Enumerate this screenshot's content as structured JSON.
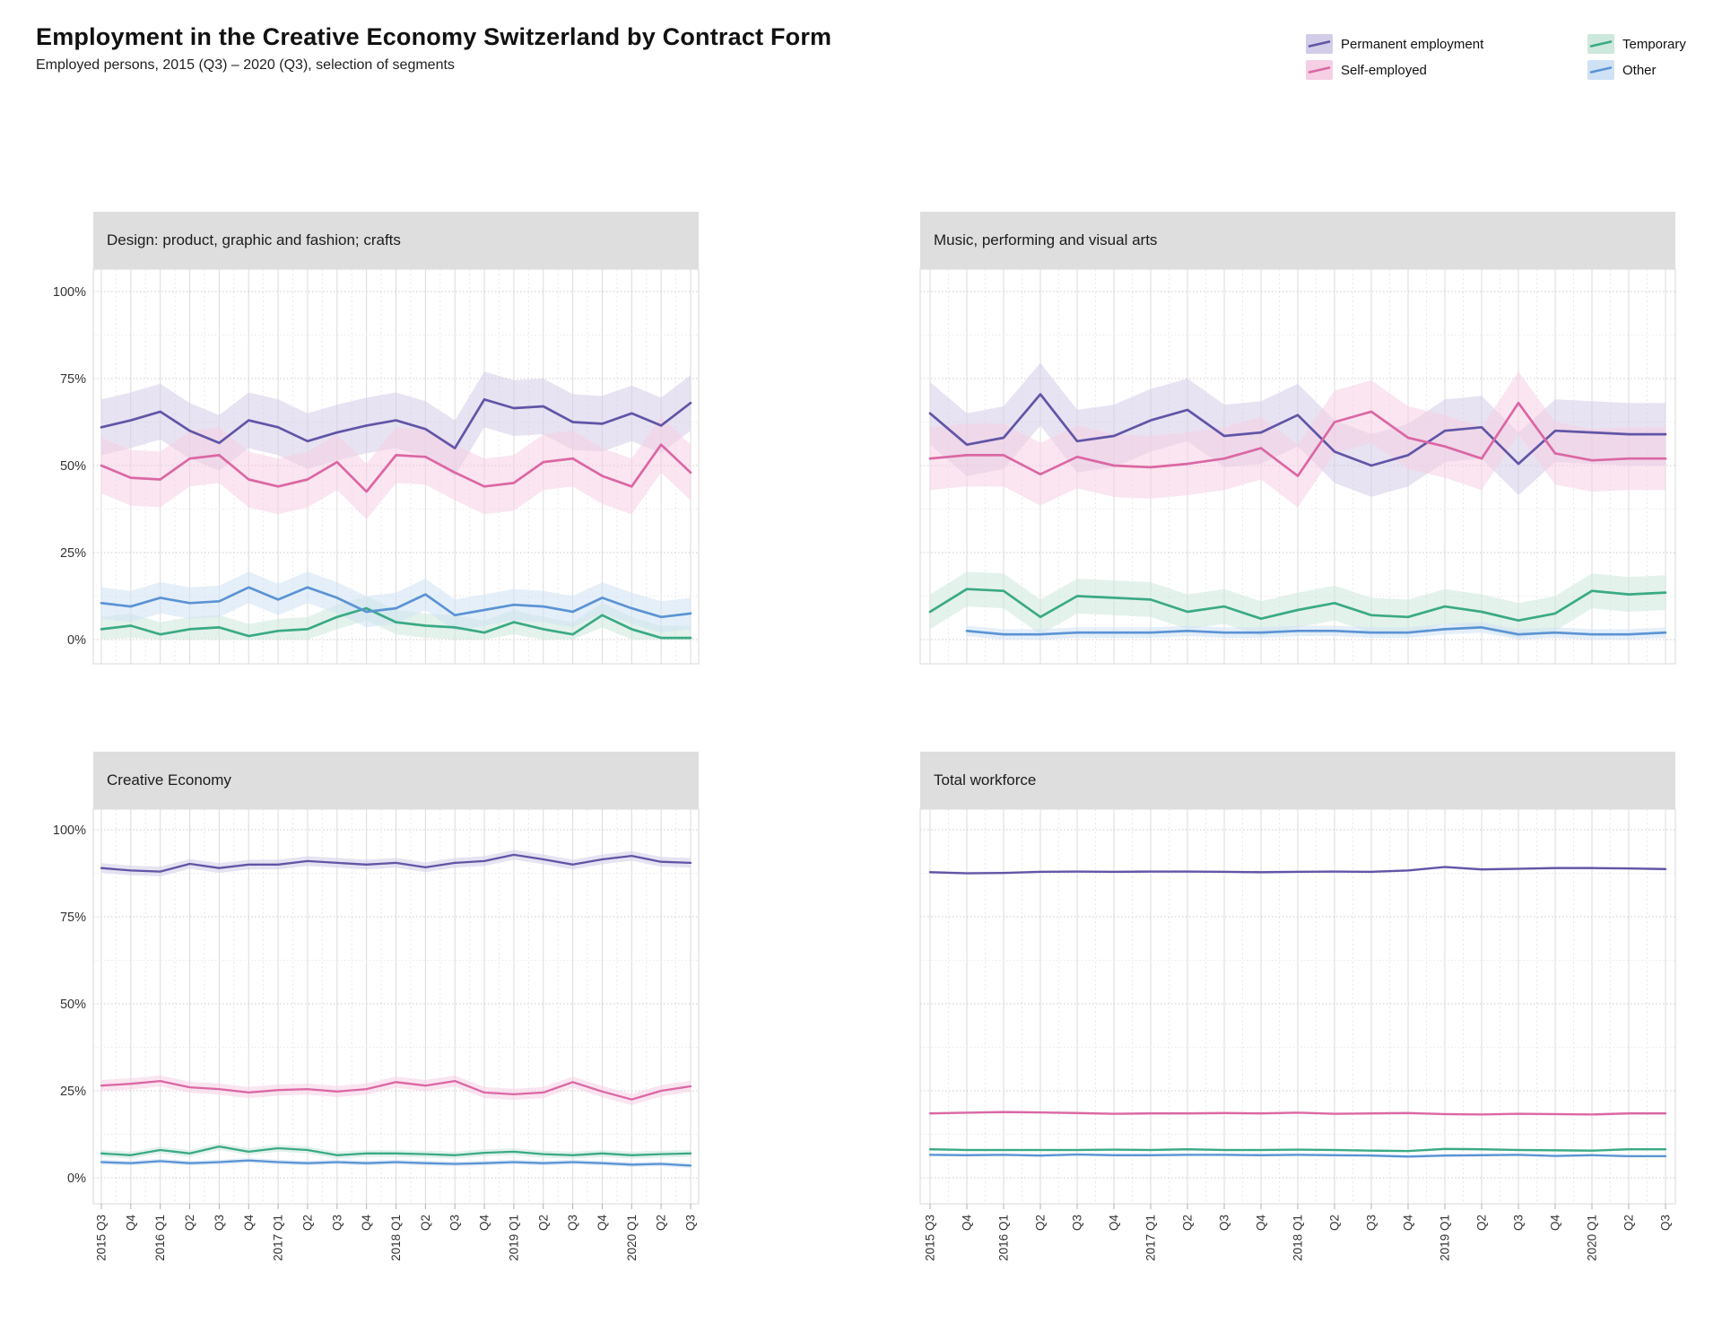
{
  "header": {
    "title": "Employment in the Creative Economy Switzerland by Contract Form",
    "subtitle": "Employed persons, 2015 (Q3) – 2020 (Q3), selection of segments"
  },
  "legend": [
    {
      "label": "Permanent employment",
      "color": "#6055A6",
      "fill": "#D3CCE8",
      "col": 0,
      "row": 0
    },
    {
      "label": "Self-employed",
      "color": "#DB67A4",
      "fill": "#F5CFE3",
      "col": 0,
      "row": 1
    },
    {
      "label": "Temporary",
      "color": "#3AAA85",
      "fill": "#CDE8DC",
      "col": 1,
      "row": 0
    },
    {
      "label": "Other",
      "color": "#5B93D4",
      "fill": "#CFE1F4",
      "col": 1,
      "row": 1
    }
  ],
  "axes": {
    "y_ticks": [
      "100%",
      "75%",
      "50%",
      "25%",
      "0%"
    ],
    "y_values": [
      100,
      75,
      50,
      25,
      0
    ]
  },
  "chart_data": {
    "type": "line",
    "title": "Employment in the Creative Economy Switzerland by Contract Form",
    "subtitle": "Employed persons, 2015 (Q3) – 2020 (Q3), selection of segments",
    "ylim": [
      0,
      100
    ],
    "grid": true,
    "legend_position": "top-right",
    "categories": [
      "2015 Q3",
      "Q4",
      "2016 Q1",
      "Q2",
      "Q3",
      "Q4",
      "2017 Q1",
      "Q2",
      "Q3",
      "Q4",
      "2018 Q1",
      "Q2",
      "Q3",
      "Q4",
      "2019 Q1",
      "Q2",
      "Q3",
      "Q4",
      "2020 Q1",
      "Q2",
      "Q3"
    ],
    "panels": [
      {
        "id": "design",
        "title": "Design: product, graphic and fashion; crafts",
        "series": [
          {
            "name": "Permanent employment",
            "color": "#6055A6",
            "fill": "#D3CCE8",
            "band": 8,
            "values": [
              61,
              63,
              65.5,
              60,
              56.5,
              63,
              61,
              57,
              59.5,
              61.5,
              63,
              60.5,
              55,
              69,
              66.5,
              67,
              62.5,
              62,
              65,
              61.5,
              68
            ]
          },
          {
            "name": "Self-employed",
            "color": "#DB67A4",
            "fill": "#F5CFE3",
            "band": 8,
            "values": [
              50,
              46.5,
              46,
              52,
              53,
              46,
              44,
              46,
              51,
              42.5,
              53,
              52.5,
              48,
              44,
              45,
              51,
              52,
              47,
              44,
              56,
              48
            ]
          },
          {
            "name": "Temporary",
            "color": "#3AAA85",
            "fill": "#CDE8DC",
            "band": 3.5,
            "values": [
              3,
              4,
              1.5,
              3,
              3.5,
              1,
              2.5,
              3,
              6.5,
              9,
              5,
              4,
              3.5,
              2,
              5,
              3,
              1.5,
              7,
              3,
              0.5,
              0.5
            ]
          },
          {
            "name": "Other",
            "color": "#5B93D4",
            "fill": "#CFE1F4",
            "band": 4.5,
            "values": [
              10.5,
              9.5,
              12,
              10.5,
              11,
              15,
              11.5,
              15,
              12,
              8,
              9,
              13,
              7,
              8.5,
              10,
              9.5,
              8,
              12,
              9,
              6.5,
              7.5
            ]
          }
        ]
      },
      {
        "id": "music",
        "title": "Music, performing and visual arts",
        "series": [
          {
            "name": "Permanent employment",
            "color": "#6055A6",
            "fill": "#D3CCE8",
            "band": 9,
            "values": [
              65,
              56,
              58,
              70.5,
              57,
              58.5,
              63,
              66,
              58.5,
              59.5,
              64.5,
              54,
              50,
              53,
              60,
              61,
              50.5,
              60,
              59.5,
              59,
              59
            ]
          },
          {
            "name": "Self-employed",
            "color": "#DB67A4",
            "fill": "#F5CFE3",
            "band": 9,
            "values": [
              52,
              53,
              53,
              47.5,
              52.5,
              50,
              49.5,
              50.5,
              52,
              55,
              47,
              62.5,
              65.5,
              58,
              55.5,
              52,
              68,
              53.5,
              51.5,
              52,
              52
            ]
          },
          {
            "name": "Temporary",
            "color": "#3AAA85",
            "fill": "#CDE8DC",
            "band": 5,
            "values": [
              8,
              14.5,
              14,
              6.5,
              12.5,
              12,
              11.5,
              8,
              9.5,
              6,
              8.5,
              10.5,
              7,
              6.5,
              9.5,
              8,
              5.5,
              7.5,
              14,
              13,
              13.5
            ]
          },
          {
            "name": "Other",
            "color": "#5B93D4",
            "fill": "#CFE1F4",
            "band": 1.5,
            "values": [
              null,
              2.5,
              1.5,
              1.5,
              2,
              2,
              2,
              2.5,
              2,
              2,
              2.5,
              2.5,
              2,
              2,
              3,
              3.5,
              1.5,
              2,
              1.5,
              1.5,
              2
            ]
          }
        ]
      },
      {
        "id": "creative-economy",
        "title": "Creative Economy",
        "series": [
          {
            "name": "Permanent employment",
            "color": "#6055A6",
            "fill": "#D3CCE8",
            "band": 1.4,
            "values": [
              89,
              88.3,
              88,
              90.2,
              89,
              90,
              90,
              91,
              90.5,
              90,
              90.5,
              89.2,
              90.5,
              91,
              92.8,
              91.5,
              90,
              91.5,
              92.5,
              90.8,
              90.5
            ]
          },
          {
            "name": "Self-employed",
            "color": "#DB67A4",
            "fill": "#F5CFE3",
            "band": 1.6,
            "values": [
              26.5,
              27,
              27.8,
              26,
              25.5,
              24.5,
              25.2,
              25.5,
              24.8,
              25.5,
              27.5,
              26.5,
              27.8,
              24.5,
              24,
              24.5,
              27.5,
              24.8,
              22.5,
              25,
              26.3
            ]
          },
          {
            "name": "Temporary",
            "color": "#3AAA85",
            "fill": "#CDE8DC",
            "band": 1,
            "values": [
              7,
              6.5,
              8,
              7,
              9,
              7.5,
              8.5,
              8,
              6.5,
              7,
              7,
              6.8,
              6.5,
              7.2,
              7.5,
              6.8,
              6.5,
              7,
              6.5,
              6.8,
              7
            ]
          },
          {
            "name": "Other",
            "color": "#5B93D4",
            "fill": "#CFE1F4",
            "band": 0.7,
            "values": [
              4.5,
              4.2,
              4.8,
              4.2,
              4.5,
              5,
              4.5,
              4.2,
              4.5,
              4.2,
              4.5,
              4.2,
              4,
              4.2,
              4.5,
              4.2,
              4.5,
              4.2,
              3.8,
              4,
              3.5
            ]
          }
        ]
      },
      {
        "id": "total-workforce",
        "title": "Total workforce",
        "series": [
          {
            "name": "Permanent employment",
            "color": "#6055A6",
            "fill": "#D3CCE8",
            "band": 0.4,
            "values": [
              87.8,
              87.5,
              87.6,
              87.9,
              88,
              87.9,
              88,
              88,
              87.9,
              87.8,
              87.9,
              88,
              87.9,
              88.3,
              89.3,
              88.6,
              88.8,
              89,
              89,
              88.9,
              88.7
            ]
          },
          {
            "name": "Self-employed",
            "color": "#DB67A4",
            "fill": "#F5CFE3",
            "band": 0.4,
            "values": [
              18.5,
              18.7,
              18.9,
              18.8,
              18.6,
              18.4,
              18.5,
              18.5,
              18.6,
              18.5,
              18.7,
              18.4,
              18.5,
              18.6,
              18.3,
              18.2,
              18.4,
              18.3,
              18.2,
              18.5,
              18.5
            ]
          },
          {
            "name": "Temporary",
            "color": "#3AAA85",
            "fill": "#CDE8DC",
            "band": 0.4,
            "values": [
              8.2,
              8,
              8,
              8,
              8,
              8.1,
              8,
              8.2,
              8,
              8,
              8.1,
              8,
              7.8,
              7.7,
              8.3,
              8.2,
              8,
              7.9,
              7.8,
              8.2,
              8.2
            ]
          },
          {
            "name": "Other",
            "color": "#5B93D4",
            "fill": "#CFE1F4",
            "band": 0.4,
            "values": [
              6.6,
              6.5,
              6.6,
              6.4,
              6.7,
              6.5,
              6.5,
              6.6,
              6.6,
              6.5,
              6.6,
              6.5,
              6.4,
              6.1,
              6.4,
              6.5,
              6.6,
              6.3,
              6.5,
              6.2,
              6.2
            ]
          }
        ]
      }
    ]
  }
}
